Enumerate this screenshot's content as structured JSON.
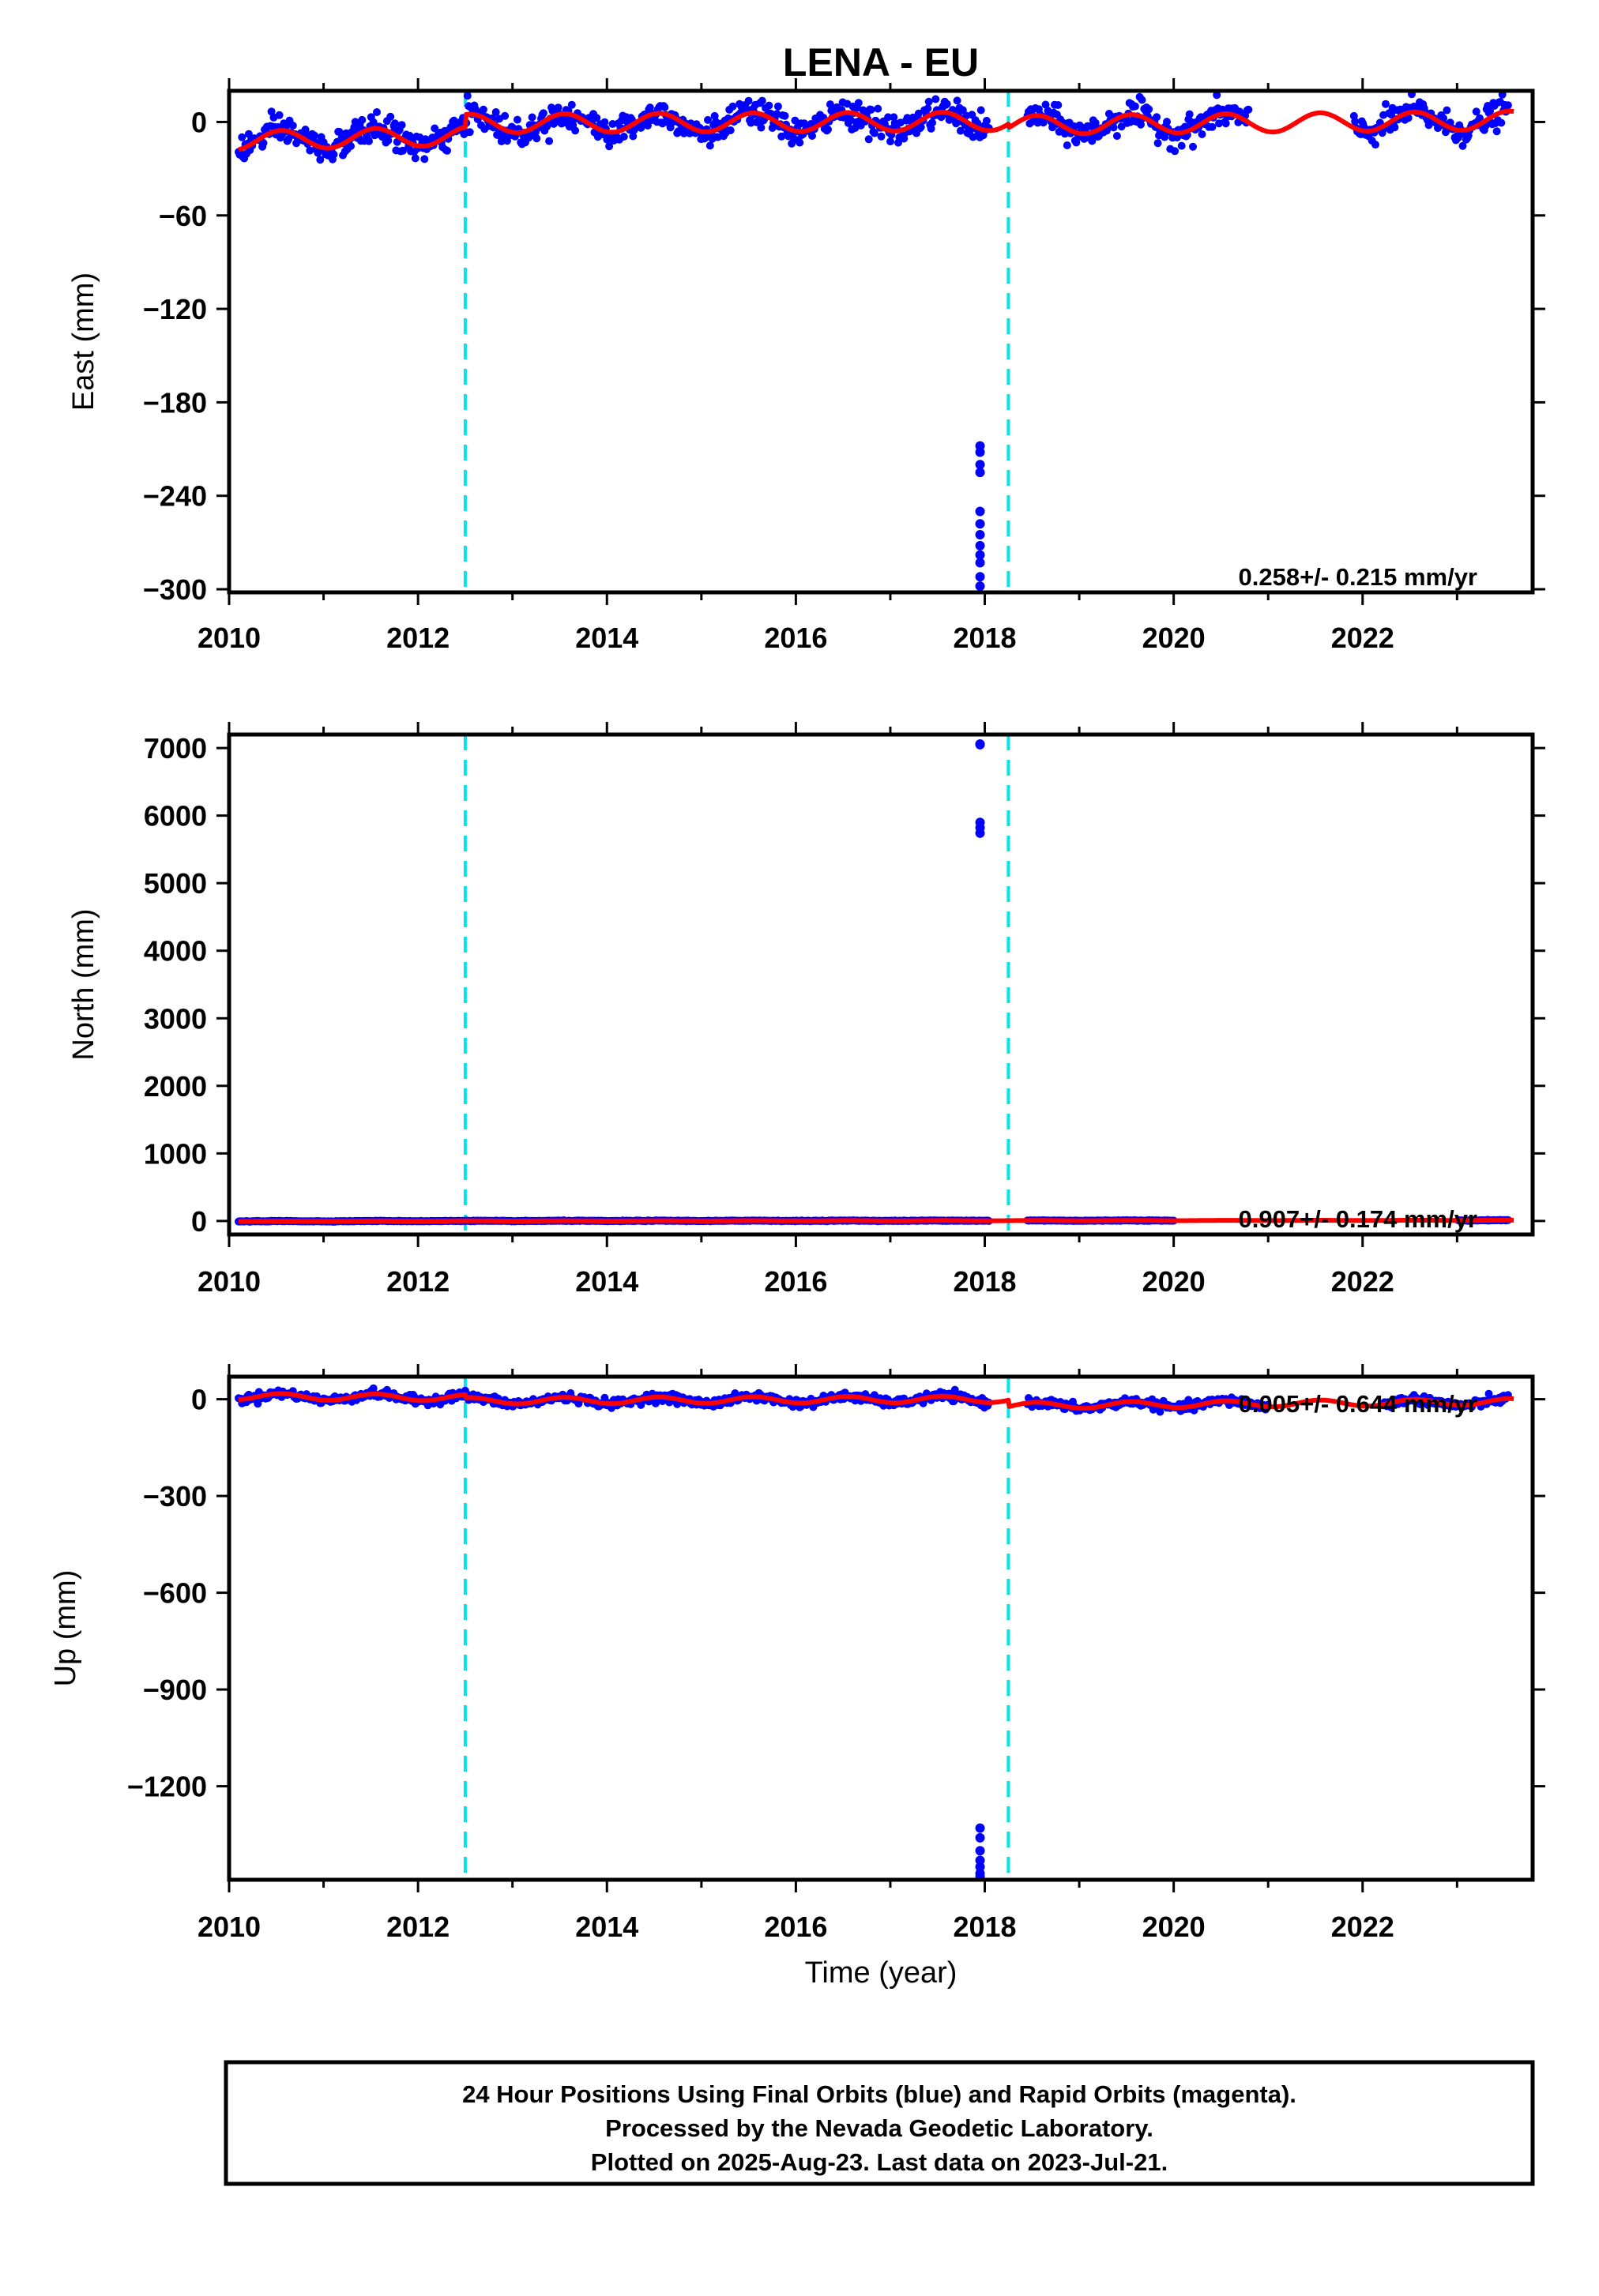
{
  "chart_data": [
    {
      "type": "scatter",
      "title": "LENA - EU",
      "xlabel": "",
      "ylabel": "East (mm)",
      "xlim": [
        2010,
        2023.8
      ],
      "ylim": [
        -302,
        20
      ],
      "x_ticks": [
        2010,
        2012,
        2014,
        2016,
        2018,
        2020,
        2022
      ],
      "y_ticks": [
        0,
        -60,
        -120,
        -180,
        -240,
        -300
      ],
      "y_tick_labels": [
        "0",
        "-60",
        "-120",
        "-180",
        "-240",
        "-300"
      ],
      "grid": false,
      "rate_annotation": "0.258+/- 0.215 mm/yr",
      "breaks": [
        2012.5,
        2018.25
      ],
      "data_gaps": [
        [
          2018.05,
          2018.45
        ],
        [
          2020.8,
          2021.9
        ]
      ],
      "model_amplitude": 6,
      "model_segments": [
        {
          "t0": 2010.1,
          "t1": 2012.5,
          "y0": -12,
          "y1": -9
        },
        {
          "t0": 2012.5,
          "t1": 2018.25,
          "y0": -1,
          "y1": 0.5
        },
        {
          "t0": 2018.25,
          "t1": 2023.6,
          "y0": -2,
          "y1": 1
        }
      ],
      "outliers": {
        "x": 2017.95,
        "y": [
          -208,
          -212,
          -220,
          -225,
          -250,
          -258,
          -265,
          -272,
          -278,
          -283,
          -292,
          -298
        ]
      },
      "series": [
        {
          "name": "Final Orbits",
          "color": "#0000ff",
          "kind": "points"
        },
        {
          "name": "Rapid Orbits",
          "color": "#ff00ff",
          "kind": "points"
        },
        {
          "name": "",
          "color": "#ff0000",
          "kind": "line"
        }
      ]
    },
    {
      "type": "scatter",
      "title": "",
      "xlabel": "",
      "ylabel": "North (mm)",
      "xlim": [
        2010,
        2023.8
      ],
      "ylim": [
        -200,
        7200
      ],
      "x_ticks": [
        2010,
        2012,
        2014,
        2016,
        2018,
        2020,
        2022
      ],
      "y_ticks": [
        0,
        1000,
        2000,
        3000,
        4000,
        5000,
        6000,
        7000
      ],
      "y_tick_labels": [
        "0",
        "1000",
        "2000",
        "3000",
        "4000",
        "5000",
        "6000",
        "7000"
      ],
      "grid": false,
      "rate_annotation": "0.907+/- 0.174 mm/yr",
      "breaks": [
        2012.5,
        2018.25
      ],
      "data_gaps": [
        [
          2018.05,
          2018.45
        ],
        [
          2020.0,
          2023.0
        ]
      ],
      "model_amplitude": 2,
      "model_segments": [
        {
          "t0": 2010.1,
          "t1": 2012.5,
          "y0": -5,
          "y1": 0
        },
        {
          "t0": 2012.5,
          "t1": 2018.25,
          "y0": 0,
          "y1": 5
        },
        {
          "t0": 2018.25,
          "t1": 2023.6,
          "y0": 5,
          "y1": 10
        }
      ],
      "outliers": {
        "x": 2017.95,
        "y": [
          7050,
          7060,
          5900,
          5820,
          5740
        ]
      },
      "series": [
        {
          "name": "Final Orbits",
          "color": "#0000ff",
          "kind": "points"
        },
        {
          "name": "Rapid Orbits",
          "color": "#ff00ff",
          "kind": "points"
        },
        {
          "name": "",
          "color": "#ff0000",
          "kind": "line"
        }
      ]
    },
    {
      "type": "scatter",
      "title": "",
      "xlabel": "Time (year)",
      "ylabel": "Up (mm)",
      "xlim": [
        2010,
        2023.8
      ],
      "ylim": [
        -1490,
        70
      ],
      "x_ticks": [
        2010,
        2012,
        2014,
        2016,
        2018,
        2020,
        2022
      ],
      "y_ticks": [
        0,
        -300,
        -600,
        -900,
        -1200
      ],
      "y_tick_labels": [
        "0",
        "-300",
        "-600",
        "-900",
        "-1200"
      ],
      "grid": false,
      "rate_annotation": "0.005+/- 0.644 mm/yr",
      "breaks": [
        2012.5,
        2018.25
      ],
      "data_gaps": [
        [
          2018.05,
          2018.45
        ],
        [
          2021.0,
          2022.2
        ]
      ],
      "model_amplitude": 10,
      "model_segments": [
        {
          "t0": 2010.1,
          "t1": 2012.5,
          "y0": 8,
          "y1": 5
        },
        {
          "t0": 2012.5,
          "t1": 2018.25,
          "y0": -5,
          "y1": 0
        },
        {
          "t0": 2018.25,
          "t1": 2023.6,
          "y0": -20,
          "y1": -8
        }
      ],
      "outliers": {
        "x": 2017.95,
        "y": [
          -1330,
          -1360,
          -1400,
          -1430,
          -1450,
          -1470,
          -1480
        ]
      },
      "series": [
        {
          "name": "Final Orbits",
          "color": "#0000ff",
          "kind": "points"
        },
        {
          "name": "Rapid Orbits",
          "color": "#ff00ff",
          "kind": "points"
        },
        {
          "name": "",
          "color": "#ff0000",
          "kind": "line"
        }
      ]
    }
  ],
  "footer": {
    "line1": "24 Hour Positions Using Final Orbits (blue) and Rapid Orbits (magenta).",
    "line2": "Processed by the Nevada Geodetic Laboratory.",
    "line3": "Plotted on 2025-Aug-23. Last data on 2023-Jul-21."
  },
  "colors": {
    "final_orbits": "#0000ff",
    "rapid_orbits": "#ff00ff",
    "model": "#ff0000",
    "breaks": "#00e5ee",
    "frame": "#000000"
  }
}
